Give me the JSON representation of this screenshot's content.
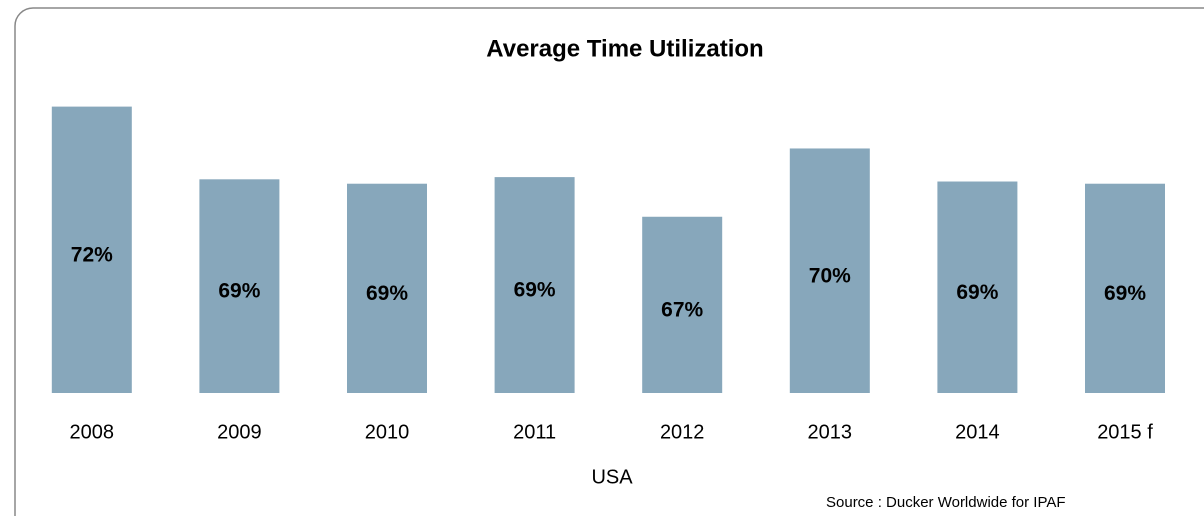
{
  "chart_data": {
    "type": "bar",
    "title": "Average Time Utilization",
    "categories": [
      "2008",
      "2009",
      "2010",
      "2011",
      "2012",
      "2013",
      "2014",
      "2015 f"
    ],
    "values": [
      72,
      68.7,
      68.5,
      68.8,
      67,
      70.1,
      68.6,
      68.5
    ],
    "value_labels": [
      "72%",
      "69%",
      "69%",
      "69%",
      "67%",
      "70%",
      "69%",
      "69%"
    ],
    "color": "#87a7bb",
    "ylim": [
      59,
      72.3
    ],
    "x_label": "USA",
    "source": "Source : Ducker Worldwide for IPAF"
  }
}
